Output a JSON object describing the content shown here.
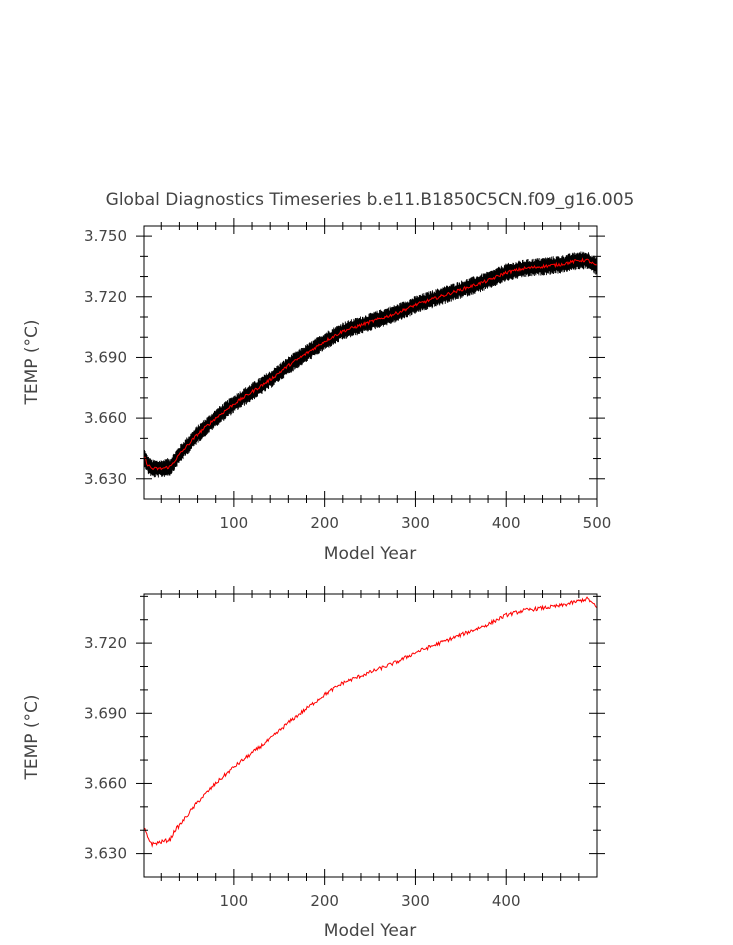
{
  "chart_data": [
    {
      "type": "line",
      "title": "Global Diagnostics Timeseries b.e11.B1850C5CN.f09_g16.005",
      "xlabel": "Model Year",
      "ylabel": "TEMP (°C)",
      "xlim": [
        1,
        500
      ],
      "ylim": [
        3.62,
        3.755
      ],
      "x_ticks": [
        100,
        200,
        300,
        400,
        500
      ],
      "x_tick_labels": [
        "100",
        "200",
        "300",
        "400",
        "500"
      ],
      "y_ticks": [
        3.63,
        3.66,
        3.69,
        3.72,
        3.75
      ],
      "y_tick_labels": [
        "3.630",
        "3.660",
        "3.690",
        "3.720",
        "3.750"
      ],
      "grid": false,
      "legend": "none",
      "series": [
        {
          "color": "#000000",
          "style": "monthly values, dense band",
          "band_halfwidth": 0.0045,
          "x": [
            1,
            5,
            10,
            20,
            30,
            40,
            50,
            60,
            70,
            80,
            100,
            120,
            140,
            160,
            180,
            200,
            220,
            240,
            260,
            280,
            300,
            320,
            340,
            360,
            380,
            400,
            420,
            440,
            460,
            480,
            490,
            500
          ],
          "values": [
            3.641,
            3.637,
            3.635,
            3.635,
            3.636,
            3.642,
            3.647,
            3.652,
            3.656,
            3.66,
            3.667,
            3.673,
            3.679,
            3.686,
            3.692,
            3.698,
            3.703,
            3.706,
            3.709,
            3.712,
            3.716,
            3.719,
            3.722,
            3.725,
            3.728,
            3.732,
            3.734,
            3.735,
            3.736,
            3.738,
            3.738,
            3.735
          ]
        },
        {
          "color": "#ff0000",
          "style": "annual mean",
          "x": [
            1,
            5,
            10,
            20,
            30,
            40,
            50,
            60,
            70,
            80,
            100,
            120,
            140,
            160,
            180,
            200,
            220,
            240,
            260,
            280,
            300,
            320,
            340,
            360,
            380,
            400,
            420,
            440,
            460,
            480,
            490,
            500
          ],
          "values": [
            3.641,
            3.637,
            3.635,
            3.635,
            3.636,
            3.642,
            3.647,
            3.652,
            3.656,
            3.66,
            3.667,
            3.673,
            3.679,
            3.686,
            3.692,
            3.698,
            3.703,
            3.706,
            3.709,
            3.712,
            3.716,
            3.719,
            3.722,
            3.725,
            3.728,
            3.732,
            3.734,
            3.735,
            3.736,
            3.738,
            3.738,
            3.735
          ]
        }
      ]
    },
    {
      "type": "line",
      "title": "",
      "xlabel": "Model Year",
      "ylabel": "TEMP (°C)",
      "xlim": [
        1,
        500
      ],
      "ylim": [
        3.62,
        3.741
      ],
      "x_ticks": [
        100,
        200,
        300,
        400
      ],
      "x_tick_labels": [
        "100",
        "200",
        "300",
        "400"
      ],
      "y_ticks": [
        3.63,
        3.66,
        3.69,
        3.72
      ],
      "y_tick_labels": [
        "3.630",
        "3.660",
        "3.690",
        "3.720"
      ],
      "grid": false,
      "legend": "none",
      "series": [
        {
          "color": "#ff0000",
          "style": "annual mean",
          "x": [
            1,
            5,
            10,
            20,
            30,
            35,
            40,
            50,
            60,
            70,
            80,
            100,
            120,
            140,
            160,
            180,
            200,
            220,
            240,
            260,
            280,
            300,
            320,
            340,
            360,
            380,
            400,
            420,
            440,
            460,
            480,
            490,
            495,
            500
          ],
          "values": [
            3.641,
            3.637,
            3.634,
            3.635,
            3.636,
            3.64,
            3.642,
            3.647,
            3.652,
            3.656,
            3.66,
            3.667,
            3.673,
            3.679,
            3.686,
            3.692,
            3.698,
            3.703,
            3.706,
            3.709,
            3.712,
            3.716,
            3.719,
            3.722,
            3.725,
            3.728,
            3.732,
            3.734,
            3.735,
            3.736,
            3.738,
            3.739,
            3.737,
            3.735
          ]
        }
      ]
    }
  ]
}
